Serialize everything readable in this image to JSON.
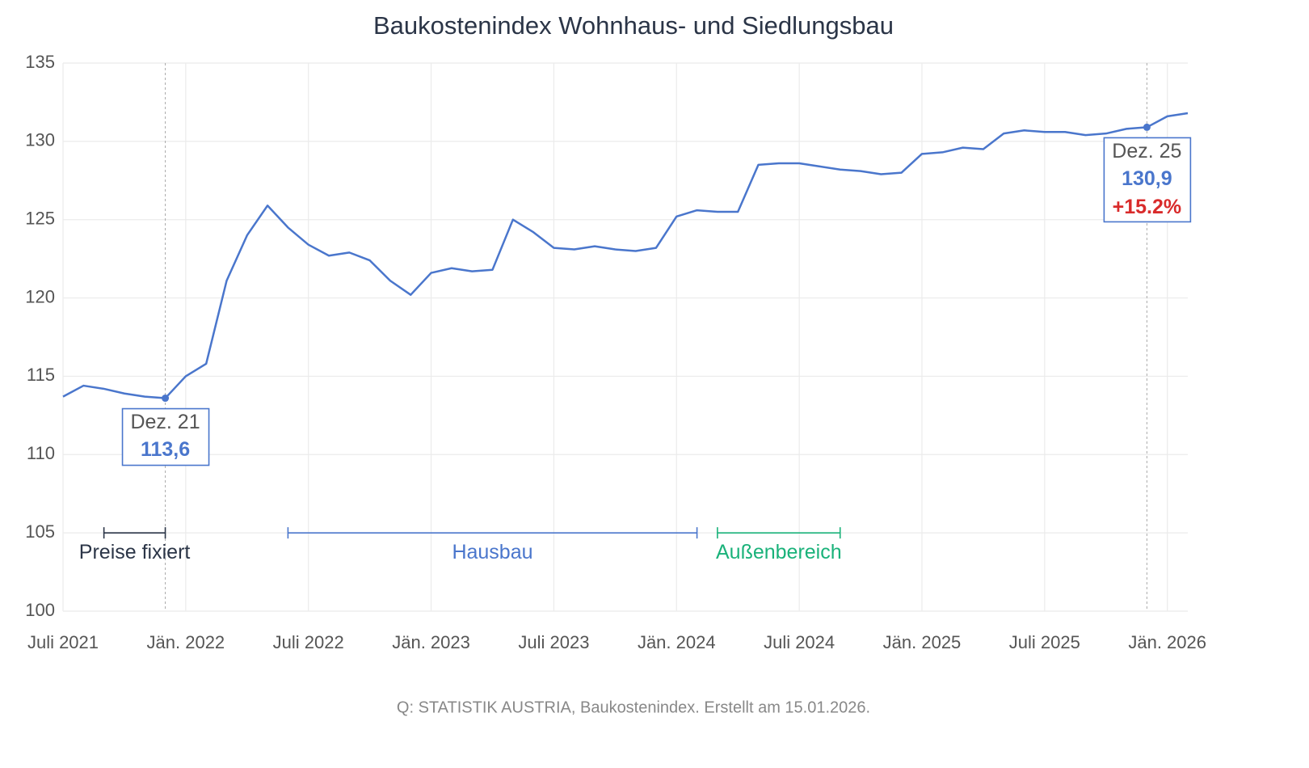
{
  "chart_data": {
    "type": "line",
    "title": "Baukostenindex Wohnhaus- und Siedlungsbau",
    "source": "Q: STATISTIK AUSTRIA, Baukostenindex. Erstellt am 15.01.2026.",
    "x": [
      "2021-07",
      "2021-08",
      "2021-09",
      "2021-10",
      "2021-11",
      "2021-12",
      "2022-01",
      "2022-02",
      "2022-03",
      "2022-04",
      "2022-05",
      "2022-06",
      "2022-07",
      "2022-08",
      "2022-09",
      "2022-10",
      "2022-11",
      "2022-12",
      "2023-01",
      "2023-02",
      "2023-03",
      "2023-04",
      "2023-05",
      "2023-06",
      "2023-07",
      "2023-08",
      "2023-09",
      "2023-10",
      "2023-11",
      "2023-12",
      "2024-01",
      "2024-02",
      "2024-03",
      "2024-04",
      "2024-05",
      "2024-06",
      "2024-07",
      "2024-08",
      "2024-09",
      "2024-10",
      "2024-11",
      "2024-12",
      "2025-01",
      "2025-02",
      "2025-03",
      "2025-04",
      "2025-05",
      "2025-06",
      "2025-07",
      "2025-08",
      "2025-09",
      "2025-10",
      "2025-11",
      "2025-12",
      "2026-01",
      "2026-02"
    ],
    "series": [
      {
        "color": "#4a76cc",
        "values": [
          113.7,
          114.4,
          114.2,
          113.9,
          113.7,
          113.6,
          115.0,
          115.8,
          121.1,
          124.0,
          125.9,
          124.5,
          123.4,
          122.7,
          122.9,
          122.4,
          121.1,
          120.2,
          121.6,
          121.9,
          121.7,
          121.8,
          125.0,
          124.2,
          123.2,
          123.1,
          123.3,
          123.1,
          123.0,
          123.2,
          125.2,
          125.6,
          125.5,
          125.5,
          128.5,
          128.6,
          128.6,
          128.4,
          128.2,
          128.1,
          127.9,
          128.0,
          129.2,
          129.3,
          129.6,
          129.5,
          130.5,
          130.7,
          130.6,
          130.6,
          130.4,
          130.5,
          130.8,
          130.9,
          131.6,
          131.8
        ]
      }
    ],
    "xlim": [
      "2021-07",
      "2026-02"
    ],
    "xticks": [
      {
        "value": "2021-07",
        "label": "Juli 2021"
      },
      {
        "value": "2022-01",
        "label": "Jän. 2022"
      },
      {
        "value": "2022-07",
        "label": "Juli 2022"
      },
      {
        "value": "2023-01",
        "label": "Jän. 2023"
      },
      {
        "value": "2023-07",
        "label": "Juli 2023"
      },
      {
        "value": "2024-01",
        "label": "Jän. 2024"
      },
      {
        "value": "2024-07",
        "label": "Juli 2024"
      },
      {
        "value": "2025-01",
        "label": "Jän. 2025"
      },
      {
        "value": "2025-07",
        "label": "Juli 2025"
      },
      {
        "value": "2026-01",
        "label": "Jän. 2026"
      }
    ],
    "ylim": [
      100,
      135
    ],
    "yticks": [
      100,
      105,
      110,
      115,
      120,
      125,
      130,
      135
    ],
    "grid": true,
    "annotations": [
      {
        "x": "2021-12",
        "label": "Dez. 21",
        "value": 113.6,
        "value_label": "113,6"
      },
      {
        "x": "2025-12",
        "label": "Dez. 25",
        "value": 130.9,
        "value_label": "130,9",
        "change": {
          "value": 15.2,
          "label": "+15.2%"
        }
      }
    ],
    "ranges": [
      {
        "label": "Preise fixiert",
        "start": "2021-09",
        "end": "2021-12",
        "y": 105,
        "color": "#2b3547"
      },
      {
        "label": "Hausbau",
        "start": "2022-06",
        "end": "2024-02",
        "y": 105,
        "color": "#4a76cc"
      },
      {
        "label": "Außenbereich",
        "start": "2024-03",
        "end": "2024-09",
        "y": 105,
        "color": "#1ab27a"
      }
    ]
  }
}
